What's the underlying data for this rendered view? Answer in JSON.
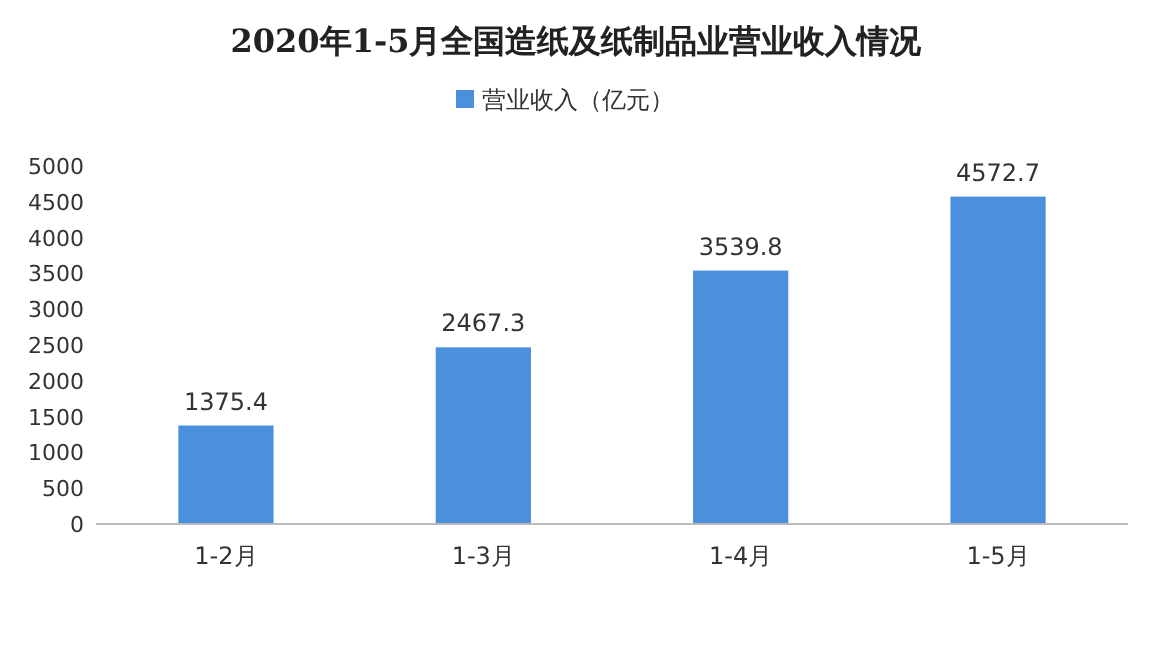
{
  "chart_data": {
    "type": "bar",
    "title": "2020年1-5月全国造纸及纸制品业营业收入情况",
    "categories": [
      "1-2月",
      "1-3月",
      "1-4月",
      "1-5月"
    ],
    "series": [
      {
        "name": "营业收入（亿元）",
        "color": "#4a90dc",
        "values": [
          1375.4,
          2467.3,
          3539.8,
          4572.7
        ]
      }
    ],
    "ylim": [
      0,
      5000
    ],
    "yticks": [
      0,
      500,
      1000,
      1500,
      2000,
      2500,
      3000,
      3500,
      4000,
      4500,
      5000
    ],
    "data_labels": true,
    "legend": "top",
    "grid": false
  }
}
